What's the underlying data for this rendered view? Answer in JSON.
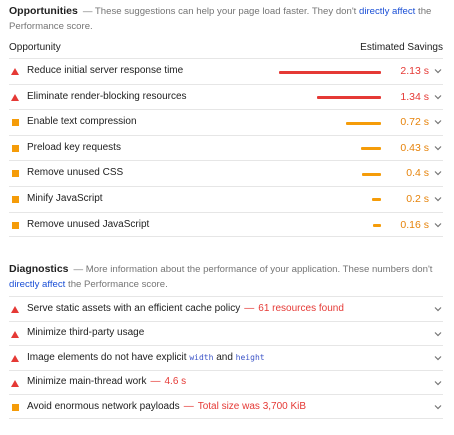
{
  "opportunities": {
    "title": "Opportunities",
    "desc_pre": "— These suggestions can help your page load faster. They don't ",
    "desc_link": "directly affect",
    "desc_post": " the Performance score.",
    "col_left": "Opportunity",
    "col_right": "Estimated Savings",
    "items": [
      {
        "label": "Reduce initial server response time",
        "value": "2.13 s",
        "status": "fail",
        "bar_fraction": 1.0
      },
      {
        "label": "Eliminate render-blocking resources",
        "value": "1.34 s",
        "status": "fail",
        "bar_fraction": 0.63
      },
      {
        "label": "Enable text compression",
        "value": "0.72 s",
        "status": "average",
        "bar_fraction": 0.34
      },
      {
        "label": "Preload key requests",
        "value": "0.43 s",
        "status": "average",
        "bar_fraction": 0.2
      },
      {
        "label": "Remove unused CSS",
        "value": "0.4 s",
        "status": "average",
        "bar_fraction": 0.19
      },
      {
        "label": "Minify JavaScript",
        "value": "0.2 s",
        "status": "average",
        "bar_fraction": 0.09
      },
      {
        "label": "Remove unused JavaScript",
        "value": "0.16 s",
        "status": "average",
        "bar_fraction": 0.08
      }
    ]
  },
  "diagnostics": {
    "title": "Diagnostics",
    "desc_pre": "— More information about the performance of your application. These numbers don't ",
    "desc_link": "directly affect",
    "desc_post": " the Performance score.",
    "items": [
      {
        "label": "Serve static assets with an efficient cache policy",
        "sub": "61 resources found",
        "status": "fail"
      },
      {
        "label": "Minimize third-party usage",
        "sub": "",
        "status": "fail"
      },
      {
        "label_pre": "Image elements do not have explicit ",
        "code1": "width",
        "label_mid": " and ",
        "code2": "height",
        "status": "fail"
      },
      {
        "label": "Minimize main-thread work",
        "sub": "4.6 s",
        "status": "fail"
      },
      {
        "label": "Avoid enormous network payloads",
        "sub": "Total size was 3,700 KiB",
        "status": "average"
      }
    ],
    "separator": "—"
  },
  "colors": {
    "fail": "#e53935",
    "average": "#f59c09",
    "link": "#1a4fd6"
  },
  "icons": {
    "fail": "red-triangle-icon",
    "average": "orange-square-icon",
    "expand": "chevron-down-icon"
  }
}
